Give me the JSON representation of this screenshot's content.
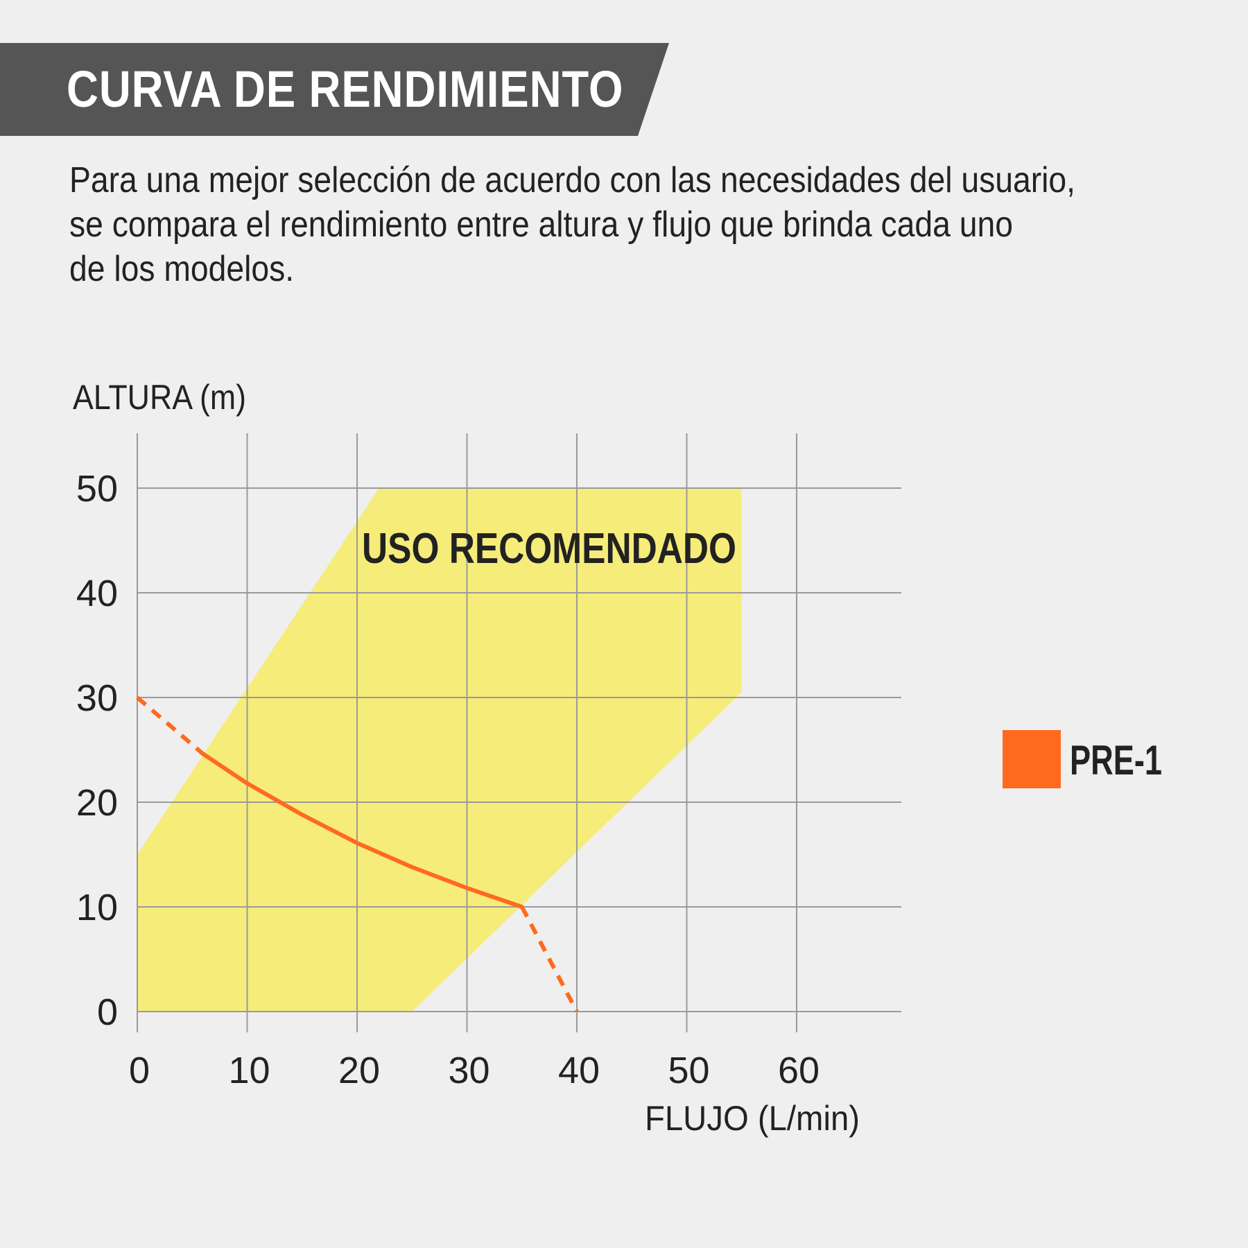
{
  "header": {
    "title": "CURVA DE RENDIMIENTO",
    "band_color": "#555555"
  },
  "description": {
    "lines": [
      "Para una mejor selección de acuerdo con las necesidades del usuario,",
      "se compara el rendimiento entre altura y flujo que brinda cada uno",
      "de los modelos."
    ]
  },
  "chart_data": {
    "type": "line",
    "xlabel": "FLUJO (L/min)",
    "ylabel": "ALTURA (m)",
    "xlim": [
      0,
      70
    ],
    "ylim": [
      0,
      55
    ],
    "x_ticks": [
      "0",
      "10",
      "20",
      "30",
      "40",
      "50",
      "60"
    ],
    "y_ticks": [
      "0",
      "10",
      "20",
      "30",
      "40",
      "50"
    ],
    "grid": true,
    "recommended_zone": {
      "label": "USO RECOMENDADO",
      "color": "#f6ec7a",
      "polygon": [
        [
          0,
          15
        ],
        [
          22,
          50
        ],
        [
          55,
          50
        ],
        [
          55,
          30.5
        ],
        [
          25,
          0
        ],
        [
          0,
          0
        ]
      ]
    },
    "series": [
      {
        "name": "PRE-1",
        "color": "#ff6a1f",
        "solid": [
          [
            6,
            24.6
          ],
          [
            10,
            21.8
          ],
          [
            15,
            18.8
          ],
          [
            20,
            16.1
          ],
          [
            25,
            13.8
          ],
          [
            30,
            11.8
          ],
          [
            35,
            10
          ]
        ],
        "dashed_start": [
          [
            0,
            30
          ],
          [
            6,
            24.6
          ]
        ],
        "dashed_end": [
          [
            35,
            10
          ],
          [
            40,
            0
          ]
        ]
      }
    ],
    "legend": {
      "position": "right",
      "entries": [
        "PRE-1"
      ]
    }
  }
}
